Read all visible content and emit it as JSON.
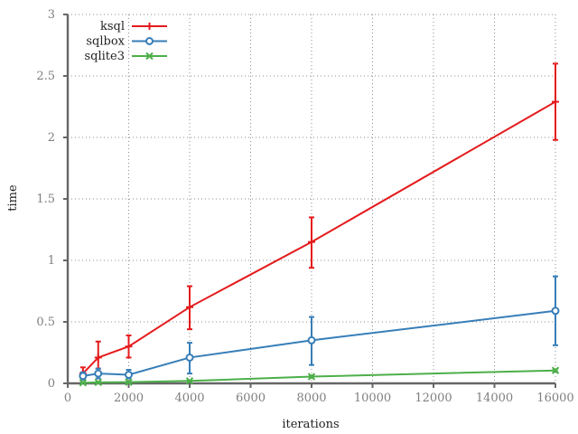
{
  "chart_data": {
    "type": "line",
    "xlabel": "iterations",
    "ylabel": "time",
    "xlim": [
      0,
      16000
    ],
    "ylim": [
      0,
      3
    ],
    "xticks": [
      "0",
      "2000",
      "4000",
      "6000",
      "8000",
      "10000",
      "12000",
      "14000",
      "16000"
    ],
    "yticks": [
      "0",
      "0.5",
      "1",
      "1.5",
      "2",
      "2.5",
      "3"
    ],
    "grid": true,
    "legend_position": "top-left",
    "series": [
      {
        "name": "ksql",
        "color": "#e41a1c",
        "marker": "plus",
        "x": [
          500,
          1000,
          2000,
          4000,
          8000,
          16000
        ],
        "y": [
          0.08,
          0.21,
          0.3,
          0.62,
          1.15,
          2.29
        ],
        "err_low": [
          0.04,
          0.12,
          0.21,
          0.44,
          0.94,
          1.98
        ],
        "err_high": [
          0.13,
          0.34,
          0.39,
          0.79,
          1.35,
          2.6
        ]
      },
      {
        "name": "sqlbox",
        "color": "#377eb8",
        "marker": "circle",
        "x": [
          500,
          1000,
          2000,
          4000,
          8000,
          16000
        ],
        "y": [
          0.06,
          0.08,
          0.07,
          0.21,
          0.35,
          0.59
        ],
        "err_low": [
          0.03,
          0.04,
          0.04,
          0.08,
          0.15,
          0.31
        ],
        "err_high": [
          0.09,
          0.12,
          0.11,
          0.33,
          0.54,
          0.87
        ]
      },
      {
        "name": "sqlite3",
        "color": "#4daf4a",
        "marker": "x",
        "x": [
          500,
          1000,
          2000,
          4000,
          8000,
          16000
        ],
        "y": [
          0.005,
          0.008,
          0.01,
          0.02,
          0.055,
          0.105
        ],
        "err_low": [
          0.003,
          0.005,
          0.007,
          0.015,
          0.045,
          0.095
        ],
        "err_high": [
          0.007,
          0.011,
          0.013,
          0.025,
          0.065,
          0.115
        ]
      }
    ]
  }
}
